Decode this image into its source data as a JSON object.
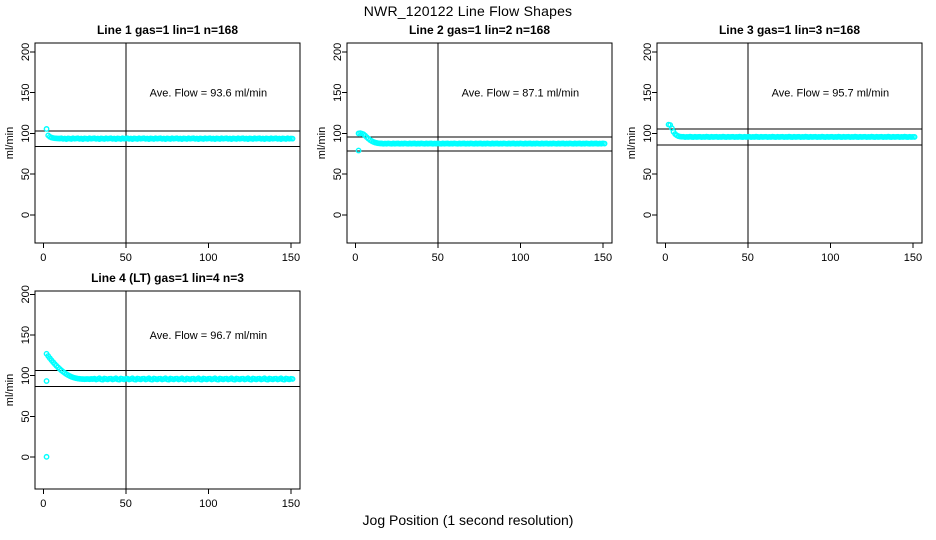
{
  "figure": {
    "main_title": "NWR_120122  Line Flow Shapes",
    "outer_xlabel": "Jog Position (1 second resolution)",
    "point_color": "#00FFFF",
    "line_color": "#000000",
    "background_color": "#FFFFFF"
  },
  "chart_data": [
    {
      "type": "scatter",
      "title": "Line 1 gas=1 lin=1 n=168",
      "ylabel": "ml/min",
      "annotation": "Ave. Flow =  93.6  ml/min",
      "ave_flow_ml_min": 93.6,
      "x_ticks": [
        0,
        50,
        100,
        150
      ],
      "y_ticks": [
        0,
        50,
        100,
        150,
        200
      ],
      "xlim": [
        -5,
        155.5
      ],
      "ylim": [
        -34.5,
        211
      ],
      "vline_x": 50,
      "hlines": [
        103.0,
        84.2
      ],
      "x_start": 2,
      "y_values": [
        105.5,
        97.6,
        95.9,
        94.9,
        94.4,
        94.1,
        93.9,
        93.8,
        93.7,
        94.0,
        93.3,
        93.7,
        93.1,
        93.9,
        93.6,
        93.2,
        94.1,
        93.5,
        93.8,
        94.0,
        93.3,
        93.7,
        93.1,
        93.9,
        93.6,
        93.2,
        94.1,
        93.5,
        93.8,
        94.0,
        93.3,
        93.7,
        93.1,
        93.9,
        93.6,
        93.2,
        94.1,
        93.5,
        93.8,
        94.0,
        93.3,
        93.7,
        93.1,
        93.9,
        93.6,
        93.2,
        94.1,
        93.5,
        93.8,
        94.0,
        93.3,
        93.7,
        93.1,
        93.9,
        93.6,
        93.2,
        94.1,
        93.5,
        93.8,
        94.0,
        93.3,
        93.7,
        93.1,
        93.9,
        93.6,
        93.2,
        94.1,
        93.5,
        93.8,
        94.0,
        93.3,
        93.7,
        93.1,
        93.9,
        93.6,
        93.2,
        94.1,
        93.5,
        93.8,
        94.0,
        93.3,
        93.7,
        93.1,
        93.9,
        93.6,
        93.2,
        94.1,
        93.5,
        93.8,
        94.0,
        93.3,
        93.7,
        93.1,
        93.9,
        93.6,
        93.2,
        94.1,
        93.5,
        93.8,
        94.0,
        93.3,
        93.7,
        93.1,
        93.9,
        93.6,
        93.2,
        94.1,
        93.5,
        93.8,
        94.0,
        93.3,
        93.7,
        93.1,
        93.9,
        93.6,
        93.2,
        94.1,
        93.5,
        93.8,
        94.0,
        93.3,
        93.7,
        93.1,
        93.9,
        93.6,
        93.2,
        94.1,
        93.5,
        93.8,
        94.0,
        93.3,
        93.7,
        93.1,
        93.9,
        93.6,
        93.2,
        94.1,
        93.5,
        93.8,
        94.0,
        93.3,
        93.7,
        93.1,
        93.9,
        93.6,
        93.2,
        94.1,
        93.5,
        93.8,
        93.6
      ],
      "extra_points": []
    },
    {
      "type": "scatter",
      "title": "Line 2 gas=1 lin=2 n=168",
      "ylabel": "ml/min",
      "annotation": "Ave. Flow =  87.1  ml/min",
      "ave_flow_ml_min": 87.1,
      "x_ticks": [
        0,
        50,
        100,
        150
      ],
      "y_ticks": [
        0,
        50,
        100,
        150,
        200
      ],
      "xlim": [
        -5,
        155.5
      ],
      "ylim": [
        -34.5,
        211
      ],
      "vline_x": 50,
      "hlines": [
        95.8,
        78.4
      ],
      "x_start": 2,
      "y_values": [
        100.0,
        100.3,
        99.8,
        99.0,
        97.2,
        95.3,
        93.5,
        91.9,
        90.6,
        89.6,
        88.8,
        88.3,
        87.9,
        87.7,
        87.7,
        87.3,
        87.6,
        87.4,
        87.8,
        87.5,
        87.3,
        87.7,
        87.4,
        87.6,
        87.7,
        87.3,
        87.6,
        87.4,
        87.8,
        87.5,
        87.3,
        87.7,
        87.4,
        87.6,
        87.7,
        87.3,
        87.6,
        87.4,
        87.8,
        87.5,
        87.3,
        87.7,
        87.4,
        87.6,
        87.7,
        87.3,
        87.6,
        87.4,
        87.8,
        87.5,
        87.3,
        87.7,
        87.4,
        87.6,
        87.7,
        87.3,
        87.6,
        87.4,
        87.8,
        87.5,
        87.3,
        87.7,
        87.4,
        87.6,
        87.7,
        87.3,
        87.6,
        87.4,
        87.8,
        87.5,
        87.3,
        87.7,
        87.4,
        87.6,
        87.7,
        87.3,
        87.6,
        87.4,
        87.8,
        87.5,
        87.3,
        87.7,
        87.4,
        87.6,
        87.7,
        87.3,
        87.6,
        87.4,
        87.8,
        87.5,
        87.3,
        87.7,
        87.4,
        87.6,
        87.7,
        87.3,
        87.6,
        87.4,
        87.8,
        87.5,
        87.3,
        87.7,
        87.4,
        87.6,
        87.7,
        87.3,
        87.6,
        87.4,
        87.8,
        87.5,
        87.3,
        87.7,
        87.4,
        87.6,
        87.7,
        87.3,
        87.6,
        87.4,
        87.8,
        87.5,
        87.3,
        87.7,
        87.4,
        87.6,
        87.7,
        87.3,
        87.6,
        87.4,
        87.8,
        87.5,
        87.3,
        87.7,
        87.4,
        87.6,
        87.7,
        87.3,
        87.6,
        87.4,
        87.8,
        87.5,
        87.3,
        87.7,
        87.4,
        87.6,
        87.7,
        87.3,
        87.6,
        87.4,
        87.8,
        87.5
      ],
      "extra_points": [
        [
          2,
          79.0
        ]
      ]
    },
    {
      "type": "scatter",
      "title": "Line 3 gas=1 lin=3 n=168",
      "ylabel": "ml/min",
      "annotation": "Ave. Flow =  95.7  ml/min",
      "ave_flow_ml_min": 95.7,
      "x_ticks": [
        0,
        50,
        100,
        150
      ],
      "y_ticks": [
        0,
        50,
        100,
        150,
        200
      ],
      "xlim": [
        -5,
        155.5
      ],
      "ylim": [
        -34.5,
        211
      ],
      "vline_x": 50,
      "hlines": [
        105.3,
        86.1
      ],
      "x_start": 2,
      "y_values": [
        110.8,
        110.3,
        106.5,
        102.0,
        99.2,
        97.6,
        96.6,
        96.1,
        95.9,
        95.9,
        95.5,
        95.8,
        95.6,
        96.0,
        95.7,
        95.5,
        95.9,
        95.6,
        95.8,
        95.9,
        95.5,
        95.8,
        95.6,
        96.0,
        95.7,
        95.5,
        95.9,
        95.6,
        95.8,
        95.9,
        95.5,
        95.8,
        95.6,
        96.0,
        95.7,
        95.5,
        95.9,
        95.6,
        95.8,
        95.9,
        95.5,
        95.8,
        95.6,
        96.0,
        95.7,
        95.5,
        95.9,
        95.6,
        95.8,
        95.9,
        95.5,
        95.8,
        95.6,
        96.0,
        95.7,
        95.5,
        95.9,
        95.6,
        95.8,
        95.9,
        95.5,
        95.8,
        95.6,
        96.0,
        95.7,
        95.5,
        95.9,
        95.6,
        95.8,
        95.9,
        95.5,
        95.8,
        95.6,
        96.0,
        95.7,
        95.5,
        95.9,
        95.6,
        95.8,
        95.9,
        95.5,
        95.8,
        95.6,
        96.0,
        95.7,
        95.5,
        95.9,
        95.6,
        95.8,
        95.9,
        95.5,
        95.8,
        95.6,
        96.0,
        95.7,
        95.5,
        95.9,
        95.6,
        95.8,
        95.9,
        95.5,
        95.8,
        95.6,
        96.0,
        95.7,
        95.5,
        95.9,
        95.6,
        95.8,
        95.9,
        95.5,
        95.8,
        95.6,
        96.0,
        95.7,
        95.5,
        95.9,
        95.6,
        95.8,
        95.9,
        95.5,
        95.8,
        95.6,
        96.0,
        95.7,
        95.5,
        95.9,
        95.6,
        95.8,
        95.9,
        95.5,
        95.8,
        95.6,
        96.0,
        95.7,
        95.5,
        95.9,
        95.6,
        95.8,
        95.9,
        95.5,
        95.8,
        95.6,
        96.0,
        95.7,
        95.5,
        95.9,
        95.6,
        95.8,
        95.7
      ],
      "extra_points": []
    },
    {
      "type": "scatter",
      "title": "Line 4 (LT) gas=1 lin=4 n=3",
      "ylabel": "ml/min",
      "annotation": "Ave. Flow =  96.7  ml/min",
      "ave_flow_ml_min": 96.7,
      "x_ticks": [
        0,
        50,
        100,
        150
      ],
      "y_ticks": [
        0,
        50,
        100,
        150,
        200
      ],
      "xlim": [
        -5,
        155.5
      ],
      "ylim": [
        -39,
        204
      ],
      "vline_x": 50,
      "hlines": [
        106.4,
        87.0
      ],
      "x_start": 2,
      "y_values": [
        127.0,
        124.2,
        121.5,
        119.0,
        116.6,
        114.3,
        112.2,
        110.2,
        108.3,
        106.5,
        104.9,
        103.4,
        102.0,
        100.8,
        99.7,
        98.8,
        98.0,
        97.4,
        96.9,
        96.5,
        96.2,
        96.0,
        95.9,
        95.8,
        95.9,
        96.0,
        95.8,
        96.1,
        95.9,
        96.4,
        95.4,
        96.0,
        96.9,
        95.6,
        95.2,
        96.6,
        96.1,
        95.5,
        96.3,
        96.4,
        95.4,
        96.0,
        96.9,
        95.6,
        95.2,
        96.6,
        96.1,
        95.5,
        96.3,
        96.4,
        95.4,
        96.0,
        96.9,
        95.6,
        95.2,
        96.6,
        96.1,
        95.5,
        96.3,
        96.4,
        95.4,
        96.0,
        96.9,
        95.6,
        95.2,
        96.6,
        96.1,
        95.5,
        96.3,
        96.4,
        95.4,
        96.0,
        96.9,
        95.6,
        95.2,
        96.6,
        96.1,
        95.5,
        96.3,
        96.4,
        95.4,
        96.0,
        96.9,
        95.6,
        95.2,
        96.6,
        96.1,
        95.5,
        96.3,
        96.4,
        95.4,
        96.0,
        96.9,
        95.6,
        95.2,
        96.6,
        96.1,
        95.5,
        96.3,
        96.4,
        95.4,
        96.0,
        96.9,
        95.6,
        95.2,
        96.6,
        96.1,
        95.5,
        96.3,
        96.4,
        95.4,
        96.0,
        96.9,
        95.6,
        95.2,
        96.6,
        96.1,
        95.5,
        96.3,
        96.4,
        95.4,
        96.0,
        96.9,
        95.6,
        95.2,
        96.6,
        96.1,
        95.5,
        96.3,
        96.4,
        95.4,
        96.0,
        96.9,
        95.6,
        95.2,
        96.6,
        96.1,
        95.5,
        96.3,
        96.4,
        95.4,
        96.0,
        96.9,
        95.6,
        95.2,
        96.6,
        96.1,
        95.5,
        96.3,
        96.0
      ],
      "extra_points": [
        [
          2,
          93.5
        ],
        [
          2,
          0.5
        ]
      ]
    }
  ]
}
